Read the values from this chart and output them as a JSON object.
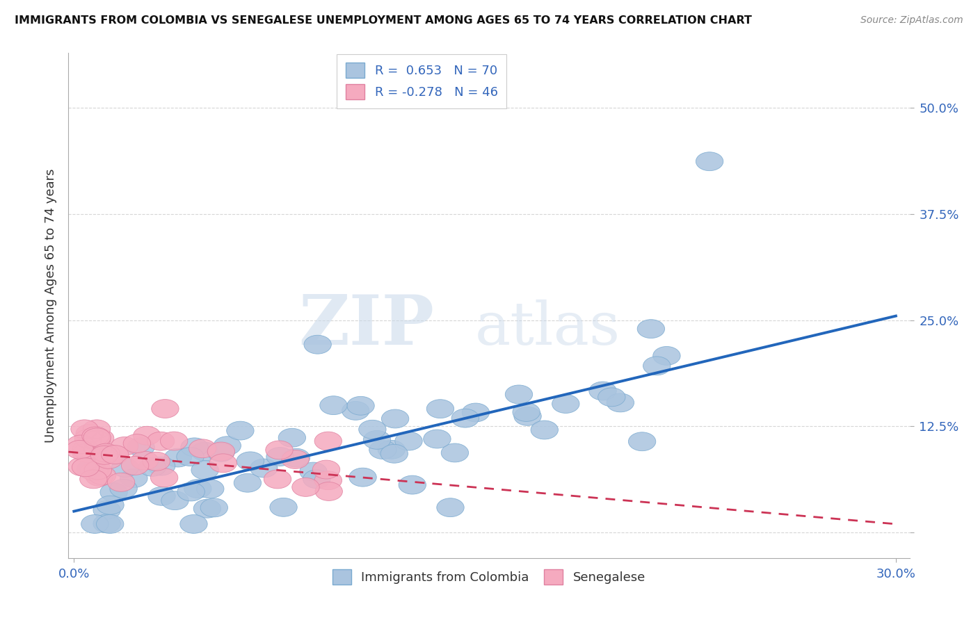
{
  "title": "IMMIGRANTS FROM COLOMBIA VS SENEGALESE UNEMPLOYMENT AMONG AGES 65 TO 74 YEARS CORRELATION CHART",
  "source": "Source: ZipAtlas.com",
  "ylabel": "Unemployment Among Ages 65 to 74 years",
  "xlim": [
    -0.002,
    0.305
  ],
  "ylim": [
    -0.03,
    0.565
  ],
  "xticks": [
    0.0,
    0.3
  ],
  "xticklabels": [
    "0.0%",
    "30.0%"
  ],
  "ytick_positions": [
    0.0,
    0.125,
    0.25,
    0.375,
    0.5
  ],
  "yticklabels": [
    "",
    "12.5%",
    "25.0%",
    "37.5%",
    "50.0%"
  ],
  "blue_line_x": [
    0.0,
    0.3
  ],
  "blue_line_y": [
    0.025,
    0.255
  ],
  "pink_line_x": [
    -0.002,
    0.3
  ],
  "pink_line_y": [
    0.095,
    0.01
  ],
  "blue_color": "#aac4df",
  "blue_edge_color": "#7aaad0",
  "pink_color": "#f5aabf",
  "pink_edge_color": "#e080a0",
  "blue_line_color": "#2266bb",
  "pink_line_color": "#cc3355",
  "R_blue": "0.653",
  "N_blue": "70",
  "R_pink": "-0.278",
  "N_pink": "46",
  "watermark_zip": "ZIP",
  "watermark_atlas": "atlas",
  "legend1": "Immigrants from Colombia",
  "legend2": "Senegalese",
  "background_color": "#ffffff",
  "grid_color": "#cccccc",
  "tick_color": "#3366bb",
  "title_color": "#111111",
  "source_color": "#888888",
  "ylabel_color": "#333333"
}
